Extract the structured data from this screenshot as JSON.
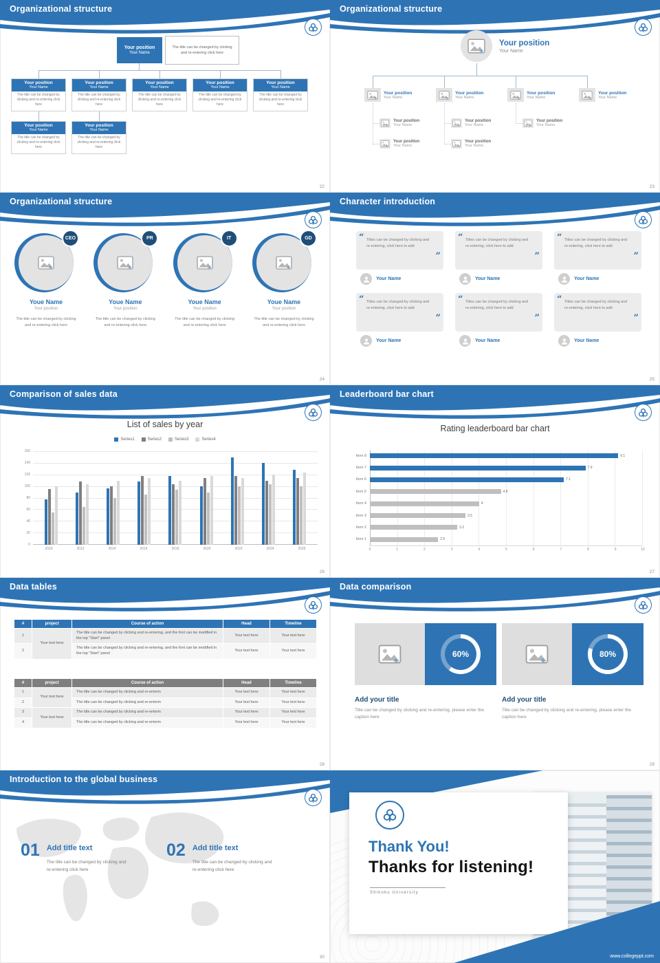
{
  "accent": "#2e74b5",
  "slides": {
    "org_boxes": {
      "title": "Organizational structure",
      "page": "22",
      "root": {
        "position": "Your position",
        "name": "Your Name"
      },
      "note": "The title can be changed by clicking and re-entering click here",
      "level1": [
        {
          "position": "Your position",
          "name": "Your Name",
          "body": "The title can be changed by clicking and re-entering click here"
        },
        {
          "position": "Your position",
          "name": "Your Name",
          "body": "The title can be changed by clicking and re-entering click here"
        },
        {
          "position": "Your position",
          "name": "Your Name",
          "body": "The title can be changed by clicking and re-entering click here"
        },
        {
          "position": "Your position",
          "name": "Your Name",
          "body": "The title can be changed by clicking and re-entering click here"
        },
        {
          "position": "Your position",
          "name": "Your Name",
          "body": "The title can be changed by clicking and re-entering click here"
        }
      ],
      "level2": [
        {
          "position": "Your position",
          "name": "Your Name",
          "body": "The title can be changed by clicking and re-entering click here"
        },
        {
          "position": "Your position",
          "name": "Your Name",
          "body": "The title can be changed by clicking and re-entering click here"
        }
      ]
    },
    "org_photo": {
      "title": "Organizational structure",
      "page": "23",
      "root": {
        "position": "Your position",
        "name": "Your Name"
      },
      "level2": [
        {
          "position": "Your position",
          "name": "Your Name"
        },
        {
          "position": "Your position",
          "name": "Your Name"
        },
        {
          "position": "Your position",
          "name": "Your Name"
        },
        {
          "position": "Your position",
          "name": "Your Name"
        }
      ],
      "level3a": [
        {
          "position": "Your position",
          "name": "Your Name"
        },
        {
          "position": "Your position",
          "name": "Your Name"
        },
        {
          "position": "Your position",
          "name": "Your Name"
        }
      ],
      "level3b": [
        {
          "position": "Your position",
          "name": "Your Name"
        },
        {
          "position": "Your position",
          "name": "Your Name"
        }
      ]
    },
    "org_circles": {
      "title": "Organizational structure",
      "page": "24",
      "members": [
        {
          "badge": "CEO",
          "name": "Youe Name",
          "position": "Your position",
          "body": "The title can be changed by clicking and re-entering click here"
        },
        {
          "badge": "PR",
          "name": "Youe Name",
          "position": "Your position",
          "body": "The title can be changed by clicking and re-entering click here"
        },
        {
          "badge": "IT",
          "name": "Youe Name",
          "position": "Your position",
          "body": "The title can be changed by clicking and re-entering click here"
        },
        {
          "badge": "GD",
          "name": "Youe Name",
          "position": "Your position",
          "body": "The title can be changed by clicking and re-entering click here"
        }
      ]
    },
    "characters": {
      "title": "Character introduction",
      "page": "25",
      "cards": [
        {
          "quote": "Titles can be changed by clicking and re-entering, click here to add",
          "name": "Your Name"
        },
        {
          "quote": "Titles can be changed by clicking and re-entering, click here to add",
          "name": "Your Name"
        },
        {
          "quote": "Titles can be changed by clicking and re-entering, click here to add",
          "name": "Your Name"
        },
        {
          "quote": "Titles can be changed by clicking and re-entering, click here to add",
          "name": "Your Name"
        },
        {
          "quote": "Titles can be changed by clicking and re-entering, click here to add",
          "name": "Your Name"
        },
        {
          "quote": "Titles can be changed by clicking and re-entering, click here to add",
          "name": "Your Name"
        }
      ]
    },
    "sales": {
      "title": "Comparison of sales data",
      "page": "26"
    },
    "leaderboard": {
      "title": "Leaderboard bar chart",
      "page": "27"
    },
    "tables": {
      "title": "Data tables",
      "page": "28",
      "table_a": {
        "headers": [
          "#",
          "project",
          "Course of action",
          "Head",
          "Timeline"
        ],
        "project": "Your text here",
        "rows": [
          {
            "num": "1",
            "course": "The title can be changed by clicking and re-entering, and the font can be modified in the top \"Start\" panel",
            "head": "Your text here",
            "timeline": "Your text here"
          },
          {
            "num": "2",
            "course": "The title can be changed by clicking and re-entering, and the font can be modified in the top \"Start\" panel",
            "head": "Your text here",
            "timeline": "Your text here"
          }
        ]
      },
      "table_b": {
        "headers": [
          "#",
          "project",
          "Course of action",
          "Head",
          "Timeline"
        ],
        "project_1": "Your text here",
        "project_2": "Your text here",
        "rows": [
          {
            "num": "1",
            "course": "The title can be changed by clicking and re-enterin",
            "head": "Your text here",
            "timeline": "Your text here"
          },
          {
            "num": "2",
            "course": "The title can be changed by clicking and re-enterin",
            "head": "Your text here",
            "timeline": "Your text here"
          },
          {
            "num": "3",
            "course": "The title can be changed by clicking and re-enterin",
            "head": "Your text here",
            "timeline": "Your text here"
          },
          {
            "num": "4",
            "course": "The title can be changed by clicking and re-enterin",
            "head": "Your text here",
            "timeline": "Your text here"
          }
        ]
      }
    },
    "comparison": {
      "title": "Data comparison",
      "page": "29",
      "panels": [
        {
          "pct": 60,
          "label": "60%",
          "heading": "Add your title",
          "caption": "Title can be changed by clicking and re-entering, please enter the caption here"
        },
        {
          "pct": 80,
          "label": "80%",
          "heading": "Add your title",
          "caption": "Title can be changed by clicking and re-entering, please enter the caption here"
        }
      ]
    },
    "global_business": {
      "title": "Introduction to the global business",
      "page": "30",
      "items": [
        {
          "num": "01",
          "heading": "Add title text",
          "body": "The title can be changed by clicking and re-entering click here"
        },
        {
          "num": "02",
          "heading": "Add title text",
          "body": "The title can be changed by clicking and re-entering click here"
        }
      ]
    },
    "thanks": {
      "thank": "Thank You!",
      "listening": "Thanks for listening!",
      "school": "Shikoku  University",
      "url": "www.collegeppt.com"
    }
  },
  "chart_data": [
    {
      "type": "bar",
      "title": "List of sales by year",
      "categories": [
        "2010",
        "2012",
        "2014",
        "2016",
        "2018",
        "2020",
        "2022",
        "2024",
        "2026"
      ],
      "series": [
        {
          "name": "Series1",
          "color": "#2e74b5",
          "values": [
            78,
            90,
            96,
            108,
            118,
            100,
            150,
            140,
            128
          ]
        },
        {
          "name": "Series2",
          "color": "#7f7f7f",
          "values": [
            95,
            108,
            100,
            118,
            104,
            114,
            118,
            110,
            114
          ]
        },
        {
          "name": "Series3",
          "color": "#bfbfbf",
          "values": [
            55,
            65,
            80,
            86,
            94,
            90,
            100,
            104,
            100
          ]
        },
        {
          "name": "Series4",
          "color": "#d9d9d9",
          "values": [
            100,
            104,
            110,
            114,
            110,
            118,
            114,
            120,
            124
          ]
        }
      ],
      "xlabel": "",
      "ylabel": "",
      "ylim": [
        0,
        160
      ],
      "ytick": 20,
      "grid": true,
      "legend_position": "top"
    },
    {
      "type": "bar",
      "orientation": "horizontal",
      "title": "Rating leaderboard bar chart",
      "categories": [
        "Item 8",
        "Item 7",
        "Item 6",
        "Item 5",
        "Item 4",
        "Item 3",
        "Item 2",
        "Item 1"
      ],
      "values": [
        9.1,
        7.9,
        7.1,
        4.8,
        4,
        3.5,
        3.2,
        2.5
      ],
      "colors": [
        "#2e74b5",
        "#2e74b5",
        "#2e74b5",
        "#bfbfbf",
        "#bfbfbf",
        "#bfbfbf",
        "#bfbfbf",
        "#bfbfbf"
      ],
      "xlim": [
        0,
        10
      ],
      "xtick": 1,
      "grid": true,
      "value_labels": true
    }
  ]
}
